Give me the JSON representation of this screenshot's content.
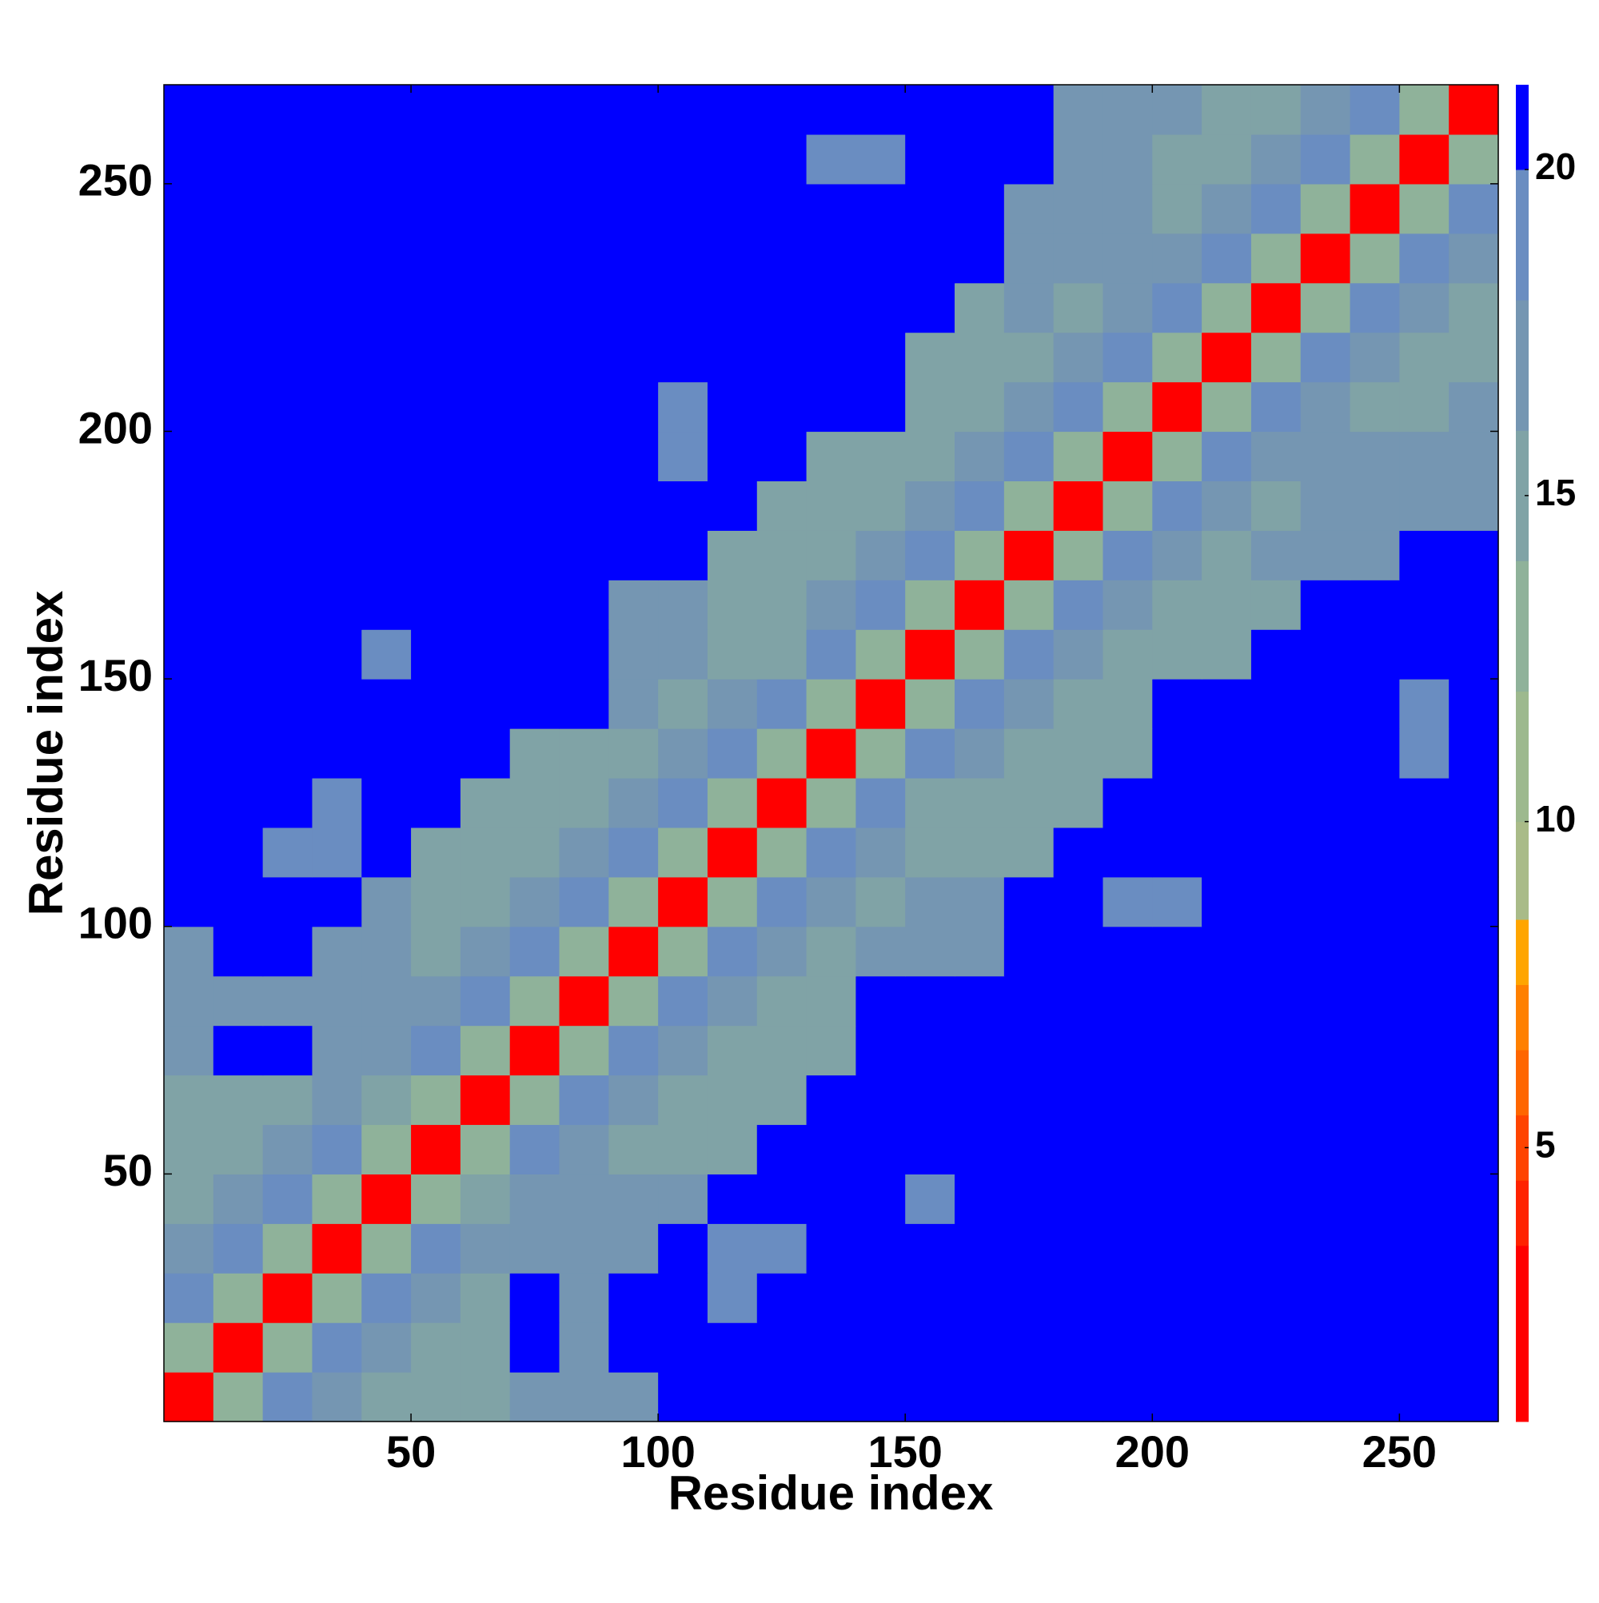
{
  "chart_data": {
    "type": "heatmap",
    "x_label": "Residue index",
    "y_label": "Residue index",
    "x": [
      5,
      15,
      25,
      35,
      45,
      55,
      65,
      75,
      85,
      95,
      105,
      115,
      125,
      135,
      145,
      155,
      165,
      175,
      185,
      195,
      205,
      215,
      225,
      235,
      245,
      255,
      265
    ],
    "y": [
      5,
      15,
      25,
      35,
      45,
      55,
      65,
      75,
      85,
      95,
      105,
      115,
      125,
      135,
      145,
      155,
      165,
      175,
      185,
      195,
      205,
      215,
      225,
      235,
      245,
      255,
      265
    ],
    "xlim": [
      0,
      270
    ],
    "ylim": [
      0,
      270
    ],
    "xticks": [
      50,
      100,
      150,
      200,
      250
    ],
    "yticks": [
      50,
      100,
      150,
      200,
      250
    ],
    "zlim": [
      0.8,
      21.3
    ],
    "zticks": [
      5,
      10,
      15,
      20
    ],
    "colorbar": {
      "bounds": [
        3.5,
        4.5,
        5.5,
        6.5,
        7.5,
        8.5,
        10,
        12,
        14,
        16,
        18,
        20
      ],
      "colors": [
        "#ff0000",
        "#ff2200",
        "#ff4400",
        "#ff6600",
        "#ff8000",
        "#ffa500",
        "#a9bb88",
        "#9db98e",
        "#8fb29a",
        "#80a3a6",
        "#7596b2",
        "#6a8dc1",
        "#0000ff"
      ]
    },
    "values": [
      [
        3,
        12,
        19,
        16,
        15,
        15,
        15,
        16,
        16,
        16,
        21,
        21,
        21,
        21,
        21,
        21,
        21,
        21,
        21,
        21,
        21,
        21,
        21,
        21,
        21,
        21,
        21
      ],
      [
        12,
        3,
        12,
        19,
        16,
        15,
        15,
        21,
        16,
        21,
        21,
        21,
        21,
        21,
        21,
        21,
        21,
        21,
        21,
        21,
        21,
        21,
        21,
        21,
        21,
        21,
        21
      ],
      [
        19,
        12,
        3,
        12,
        19,
        16,
        15,
        21,
        16,
        21,
        21,
        18,
        21,
        21,
        21,
        21,
        21,
        21,
        21,
        21,
        21,
        21,
        21,
        21,
        21,
        21,
        21
      ],
      [
        16,
        19,
        12,
        3,
        12,
        19,
        16,
        16,
        16,
        16,
        21,
        18,
        18,
        21,
        21,
        21,
        21,
        21,
        21,
        21,
        21,
        21,
        21,
        21,
        21,
        21,
        21
      ],
      [
        15,
        16,
        19,
        12,
        3,
        12,
        14,
        16,
        16,
        16,
        16,
        21,
        21,
        21,
        21,
        19,
        21,
        21,
        21,
        21,
        21,
        21,
        21,
        21,
        21,
        21,
        21
      ],
      [
        15,
        15,
        16,
        19,
        12,
        3,
        12,
        19,
        16,
        14,
        14,
        15,
        21,
        21,
        21,
        21,
        21,
        21,
        21,
        21,
        21,
        21,
        21,
        21,
        21,
        21,
        21
      ],
      [
        15,
        15,
        15,
        16,
        14,
        12,
        3,
        12,
        19,
        16,
        14,
        14,
        15,
        21,
        21,
        21,
        21,
        21,
        21,
        21,
        21,
        21,
        21,
        21,
        21,
        21,
        21
      ],
      [
        16,
        21,
        21,
        16,
        16,
        19,
        12,
        3,
        12,
        19,
        16,
        15,
        15,
        15,
        21,
        21,
        21,
        21,
        21,
        21,
        21,
        21,
        21,
        21,
        21,
        21,
        21
      ],
      [
        16,
        16,
        16,
        16,
        16,
        16,
        19,
        12,
        3,
        12,
        19,
        16,
        15,
        15,
        21,
        21,
        21,
        21,
        21,
        21,
        21,
        21,
        21,
        21,
        21,
        21,
        21
      ],
      [
        16,
        21,
        21,
        16,
        16,
        14,
        16,
        19,
        12,
        3,
        12,
        19,
        16,
        15,
        16,
        16,
        16,
        21,
        21,
        21,
        21,
        21,
        21,
        21,
        21,
        21,
        21
      ],
      [
        21,
        21,
        21,
        21,
        16,
        14,
        14,
        16,
        19,
        12,
        3,
        12,
        19,
        16,
        15,
        16,
        16,
        21,
        21,
        19,
        19,
        21,
        21,
        21,
        21,
        21,
        21
      ],
      [
        21,
        21,
        18,
        18,
        21,
        15,
        14,
        15,
        16,
        19,
        12,
        3,
        12,
        19,
        16,
        15,
        14,
        14,
        21,
        21,
        21,
        21,
        21,
        21,
        21,
        21,
        21
      ],
      [
        21,
        21,
        21,
        18,
        21,
        21,
        15,
        15,
        15,
        16,
        19,
        12,
        3,
        12,
        19,
        15,
        15,
        14,
        15,
        21,
        21,
        21,
        21,
        21,
        21,
        21,
        21
      ],
      [
        21,
        21,
        21,
        21,
        21,
        21,
        21,
        15,
        15,
        15,
        16,
        19,
        12,
        3,
        12,
        19,
        16,
        15,
        15,
        15,
        21,
        21,
        21,
        21,
        21,
        19,
        21
      ],
      [
        21,
        21,
        21,
        21,
        21,
        21,
        21,
        21,
        21,
        16,
        15,
        16,
        19,
        12,
        3,
        12,
        19,
        16,
        15,
        15,
        21,
        21,
        21,
        21,
        21,
        19,
        21
      ],
      [
        21,
        21,
        21,
        21,
        19,
        21,
        21,
        21,
        21,
        16,
        16,
        15,
        15,
        19,
        12,
        3,
        12,
        19,
        16,
        15,
        15,
        15,
        21,
        21,
        21,
        21,
        21
      ],
      [
        21,
        21,
        21,
        21,
        21,
        21,
        21,
        21,
        21,
        16,
        16,
        14,
        15,
        16,
        19,
        12,
        3,
        12,
        19,
        16,
        15,
        15,
        15,
        21,
        21,
        21,
        21
      ],
      [
        21,
        21,
        21,
        21,
        21,
        21,
        21,
        21,
        21,
        21,
        21,
        14,
        14,
        15,
        16,
        19,
        12,
        3,
        12,
        19,
        16,
        15,
        16,
        16,
        16,
        21,
        21
      ],
      [
        21,
        21,
        21,
        21,
        21,
        21,
        21,
        21,
        21,
        21,
        21,
        21,
        15,
        15,
        15,
        16,
        19,
        12,
        3,
        12,
        19,
        16,
        15,
        16,
        16,
        16,
        16
      ],
      [
        21,
        21,
        21,
        21,
        21,
        21,
        21,
        21,
        21,
        21,
        19,
        21,
        21,
        15,
        15,
        15,
        16,
        19,
        12,
        3,
        12,
        19,
        16,
        16,
        16,
        16,
        16
      ],
      [
        21,
        21,
        21,
        21,
        21,
        21,
        21,
        21,
        21,
        21,
        19,
        21,
        21,
        21,
        21,
        15,
        15,
        16,
        19,
        12,
        3,
        12,
        19,
        16,
        14,
        14,
        16
      ],
      [
        21,
        21,
        21,
        21,
        21,
        21,
        21,
        21,
        21,
        21,
        21,
        21,
        21,
        21,
        21,
        15,
        15,
        15,
        16,
        19,
        12,
        3,
        12,
        19,
        16,
        15,
        14
      ],
      [
        21,
        21,
        21,
        21,
        21,
        21,
        21,
        21,
        21,
        21,
        21,
        21,
        21,
        21,
        21,
        21,
        15,
        16,
        15,
        16,
        19,
        12,
        3,
        12,
        19,
        16,
        14
      ],
      [
        21,
        21,
        21,
        21,
        21,
        21,
        21,
        21,
        21,
        21,
        21,
        21,
        21,
        21,
        21,
        21,
        21,
        16,
        16,
        16,
        16,
        19,
        12,
        3,
        12,
        19,
        16
      ],
      [
        21,
        21,
        21,
        21,
        21,
        21,
        21,
        21,
        21,
        21,
        21,
        21,
        21,
        21,
        21,
        21,
        21,
        16,
        16,
        16,
        14,
        16,
        19,
        12,
        3,
        12,
        19
      ],
      [
        21,
        21,
        21,
        21,
        21,
        21,
        21,
        21,
        21,
        21,
        21,
        21,
        21,
        19,
        19,
        21,
        21,
        21,
        16,
        16,
        14,
        15,
        16,
        19,
        12,
        3,
        12
      ],
      [
        21,
        21,
        21,
        21,
        21,
        21,
        21,
        21,
        21,
        21,
        21,
        21,
        21,
        21,
        21,
        21,
        21,
        21,
        16,
        16,
        16,
        14,
        14,
        16,
        19,
        12,
        3
      ]
    ]
  }
}
